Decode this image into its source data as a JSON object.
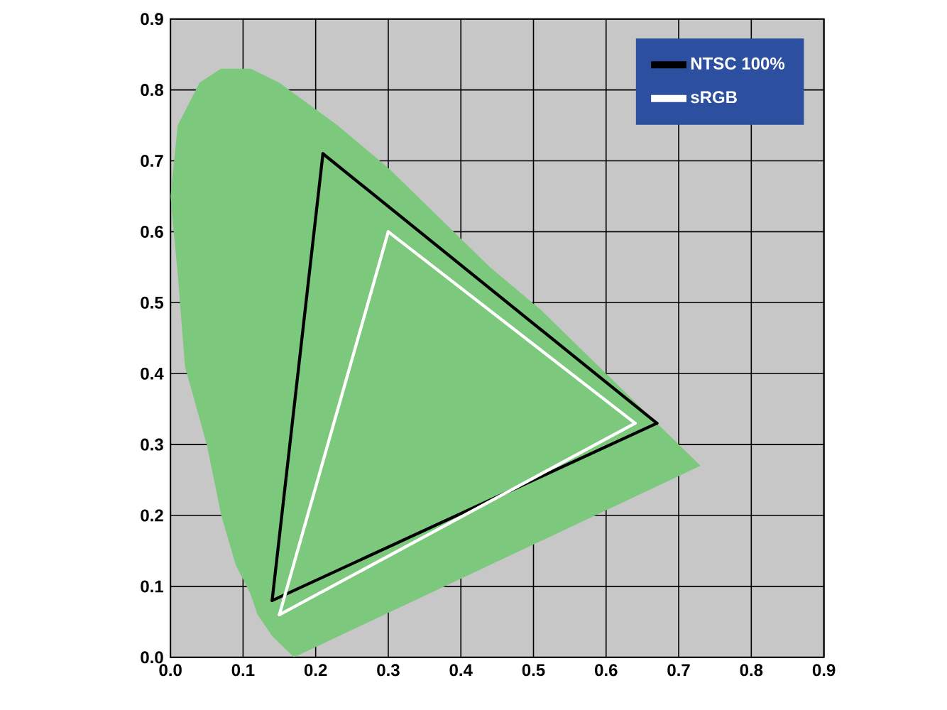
{
  "chart_data": {
    "type": "line",
    "series": [
      {
        "type": "area",
        "color": "#7cc87c",
        "x": [
          0.17,
          0.14,
          0.12,
          0.11,
          0.09,
          0.07,
          0.05,
          0.02,
          0.01,
          0.0,
          0.01,
          0.04,
          0.07,
          0.11,
          0.15,
          0.23,
          0.3,
          0.37,
          0.44,
          0.51,
          0.58,
          0.63,
          0.69,
          0.73,
          0.17
        ],
        "values": [
          0.0,
          0.03,
          0.06,
          0.09,
          0.13,
          0.2,
          0.3,
          0.41,
          0.54,
          0.65,
          0.75,
          0.81,
          0.83,
          0.83,
          0.81,
          0.75,
          0.69,
          0.62,
          0.55,
          0.49,
          0.42,
          0.37,
          0.31,
          0.27,
          0.0
        ]
      },
      {
        "name": "NTSC 100%",
        "color": "#000000",
        "x": [
          0.14,
          0.21
        ],
        "values": [
          0.08,
          0.71
        ]
      },
      {
        "color": "#000000",
        "x": [
          0.21,
          0.67
        ],
        "values": [
          0.71,
          0.33
        ]
      },
      {
        "color": "#000000",
        "x": [
          0.14,
          0.67
        ],
        "values": [
          0.08,
          0.33
        ]
      },
      {
        "name": "sRGB",
        "color": "#ffffff",
        "x": [
          0.15,
          0.3
        ],
        "values": [
          0.06,
          0.6
        ]
      },
      {
        "color": "#ffffff",
        "x": [
          0.3,
          0.64
        ],
        "values": [
          0.6,
          0.33
        ]
      },
      {
        "color": "#ffffff",
        "x": [
          0.15,
          0.64
        ],
        "values": [
          0.06,
          0.33
        ]
      }
    ],
    "xlim": [
      0,
      0.9
    ],
    "ylim": [
      0,
      0.9
    ],
    "xticks": [
      {
        "value": 0,
        "label": "0.0"
      },
      0.1,
      0.2,
      0.3,
      0.4,
      0.5,
      0.6,
      0.7,
      0.8,
      0.9
    ],
    "yticks": [
      {
        "value": 0,
        "label": "0.0"
      },
      0.1,
      0.2,
      0.3,
      0.4,
      0.5,
      0.6,
      0.7,
      0.8,
      0.9
    ],
    "grid": true,
    "legend": "top right",
    "marker": "none",
    "line_style": "solid"
  }
}
